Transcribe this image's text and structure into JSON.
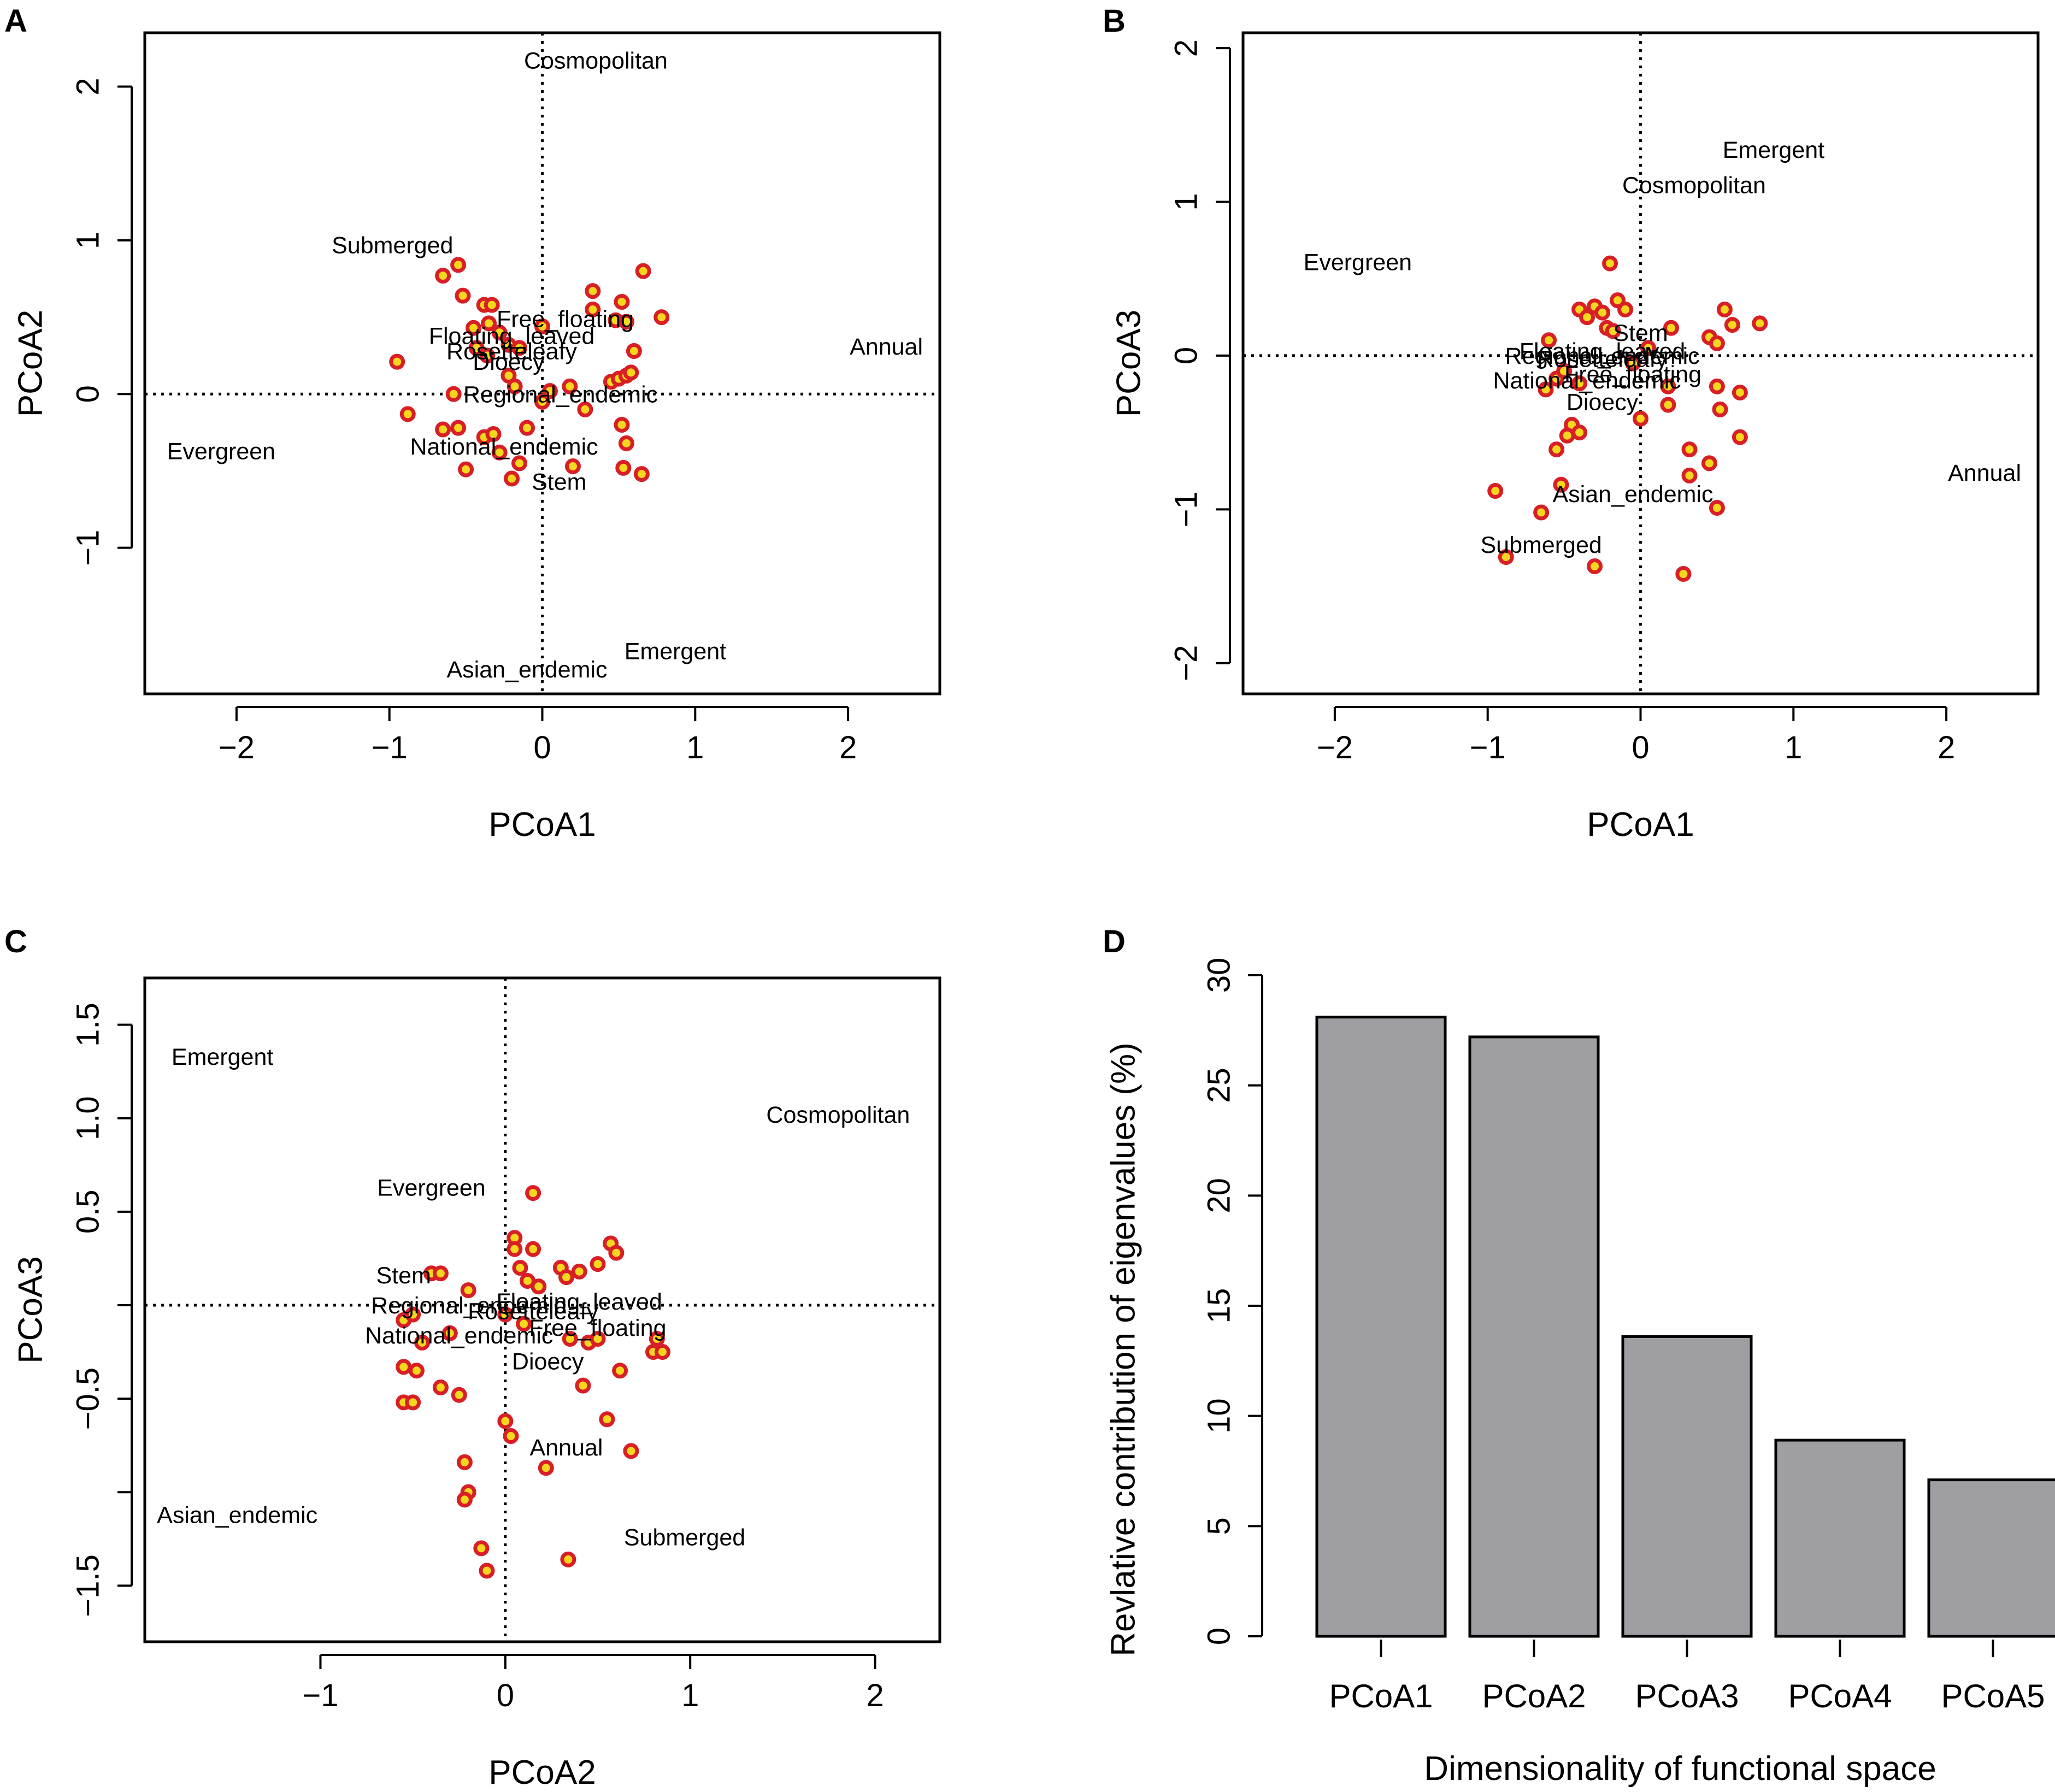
{
  "figure": {
    "panels": [
      "A",
      "B",
      "C",
      "D"
    ]
  },
  "chart_data": [
    {
      "panel": "A",
      "type": "scatter",
      "title": "",
      "xlabel": "PCoA1",
      "ylabel": "PCoA2",
      "xlim": [
        -2.6,
        2.6
      ],
      "ylim": [
        -1.95,
        2.35
      ],
      "xticks": [
        -2,
        -1,
        0,
        1,
        2
      ],
      "yticks": [
        -1,
        0,
        1,
        2
      ],
      "reference_lines": {
        "x": 0,
        "y": 0
      },
      "point_color": "#f5d71e",
      "point_edge": "#d81f26",
      "points": [
        [
          -0.65,
          0.77
        ],
        [
          -0.55,
          0.84
        ],
        [
          -0.52,
          0.64
        ],
        [
          -0.38,
          0.58
        ],
        [
          -0.33,
          0.58
        ],
        [
          -0.45,
          0.43
        ],
        [
          -0.35,
          0.46
        ],
        [
          -0.28,
          0.4
        ],
        [
          -0.43,
          0.3
        ],
        [
          -0.36,
          0.25
        ],
        [
          -0.22,
          0.32
        ],
        [
          -0.15,
          0.3
        ],
        [
          0.0,
          0.44
        ],
        [
          0.33,
          0.67
        ],
        [
          0.33,
          0.55
        ],
        [
          0.52,
          0.6
        ],
        [
          0.48,
          0.48
        ],
        [
          0.55,
          0.47
        ],
        [
          0.66,
          0.8
        ],
        [
          0.78,
          0.5
        ],
        [
          0.6,
          0.28
        ],
        [
          -0.95,
          0.21
        ],
        [
          -0.88,
          -0.13
        ],
        [
          -0.58,
          0.0
        ],
        [
          -0.55,
          -0.22
        ],
        [
          -0.65,
          -0.23
        ],
        [
          -0.5,
          -0.49
        ],
        [
          -0.38,
          -0.28
        ],
        [
          -0.32,
          -0.26
        ],
        [
          -0.28,
          -0.38
        ],
        [
          -0.22,
          0.12
        ],
        [
          -0.2,
          -0.55
        ],
        [
          -0.15,
          -0.45
        ],
        [
          -0.1,
          -0.22
        ],
        [
          -0.18,
          0.05
        ],
        [
          0.18,
          0.05
        ],
        [
          0.2,
          -0.47
        ],
        [
          0.28,
          -0.1
        ],
        [
          0.45,
          0.08
        ],
        [
          0.5,
          0.1
        ],
        [
          0.55,
          0.12
        ],
        [
          0.58,
          0.14
        ],
        [
          0.52,
          -0.2
        ],
        [
          0.55,
          -0.32
        ],
        [
          0.53,
          -0.48
        ],
        [
          0.65,
          -0.52
        ],
        [
          0.0,
          -0.05
        ],
        [
          0.05,
          0.02
        ]
      ],
      "labels": [
        {
          "text": "Cosmopolitan",
          "x": 0.35,
          "y": 2.17
        },
        {
          "text": "Submerged",
          "x": -0.98,
          "y": 0.97
        },
        {
          "text": "Free_floating",
          "x": 0.15,
          "y": 0.49
        },
        {
          "text": "Floating_leaved",
          "x": -0.2,
          "y": 0.38
        },
        {
          "text": "Rosetteleafy",
          "x": -0.2,
          "y": 0.28
        },
        {
          "text": "Dioecy",
          "x": -0.22,
          "y": 0.21
        },
        {
          "text": "Annual",
          "x": 2.25,
          "y": 0.31
        },
        {
          "text": "Regional_endemic",
          "x": 0.12,
          "y": 0.0
        },
        {
          "text": "Evergreen",
          "x": -2.1,
          "y": -0.37
        },
        {
          "text": "National_endemic",
          "x": -0.25,
          "y": -0.34
        },
        {
          "text": "Stem",
          "x": 0.11,
          "y": -0.57
        },
        {
          "text": "Emergent",
          "x": 0.87,
          "y": -1.67
        },
        {
          "text": "Asian_endemic",
          "x": -0.1,
          "y": -1.79
        }
      ]
    },
    {
      "panel": "B",
      "type": "scatter",
      "title": "",
      "xlabel": "PCoA1",
      "ylabel": "PCoA3",
      "xlim": [
        -2.6,
        2.6
      ],
      "ylim": [
        -2.2,
        2.1
      ],
      "xticks": [
        -2,
        -1,
        0,
        1,
        2
      ],
      "yticks": [
        -2,
        -1,
        0,
        1,
        2
      ],
      "reference_lines": {
        "x": 0,
        "y": 0
      },
      "point_color": "#f5d71e",
      "point_edge": "#d81f26",
      "points": [
        [
          -0.2,
          0.6
        ],
        [
          -0.4,
          0.3
        ],
        [
          -0.35,
          0.25
        ],
        [
          -0.3,
          0.32
        ],
        [
          -0.25,
          0.28
        ],
        [
          -0.15,
          0.36
        ],
        [
          -0.1,
          0.3
        ],
        [
          -0.22,
          0.18
        ],
        [
          -0.18,
          0.16
        ],
        [
          0.2,
          0.18
        ],
        [
          0.45,
          0.12
        ],
        [
          0.5,
          0.08
        ],
        [
          0.55,
          0.3
        ],
        [
          0.6,
          0.2
        ],
        [
          0.78,
          0.21
        ],
        [
          -0.6,
          0.1
        ],
        [
          -0.55,
          -0.15
        ],
        [
          -0.62,
          -0.22
        ],
        [
          -0.5,
          -0.1
        ],
        [
          -0.4,
          -0.18
        ],
        [
          -0.45,
          -0.45
        ],
        [
          -0.48,
          -0.52
        ],
        [
          -0.4,
          -0.5
        ],
        [
          -0.55,
          -0.61
        ],
        [
          0.0,
          -0.41
        ],
        [
          0.18,
          -0.32
        ],
        [
          0.18,
          -0.2
        ],
        [
          0.5,
          -0.2
        ],
        [
          0.52,
          -0.35
        ],
        [
          0.65,
          -0.24
        ],
        [
          0.65,
          -0.53
        ],
        [
          0.32,
          -0.61
        ],
        [
          0.45,
          -0.7
        ],
        [
          0.32,
          -0.78
        ],
        [
          0.5,
          -0.99
        ],
        [
          -0.95,
          -0.88
        ],
        [
          -0.52,
          -0.84
        ],
        [
          -0.65,
          -1.02
        ],
        [
          -0.88,
          -1.31
        ],
        [
          -0.3,
          -1.37
        ],
        [
          0.28,
          -1.42
        ],
        [
          -0.05,
          -0.05
        ],
        [
          0.05,
          0.05
        ]
      ],
      "labels": [
        {
          "text": "Emergent",
          "x": 0.87,
          "y": 1.34
        },
        {
          "text": "Cosmopolitan",
          "x": 0.35,
          "y": 1.11
        },
        {
          "text": "Evergreen",
          "x": -1.85,
          "y": 0.61
        },
        {
          "text": "Stem",
          "x": 0.0,
          "y": 0.15
        },
        {
          "text": "Floating_leaved",
          "x": -0.25,
          "y": 0.03
        },
        {
          "text": "Regional_endemic",
          "x": -0.25,
          "y": 0.0
        },
        {
          "text": "Rosetteleafy",
          "x": -0.25,
          "y": -0.02
        },
        {
          "text": "Free_floating",
          "x": -0.05,
          "y": -0.12
        },
        {
          "text": "National_endemic",
          "x": -0.35,
          "y": -0.16
        },
        {
          "text": "Dioecy",
          "x": -0.25,
          "y": -0.3
        },
        {
          "text": "Annual",
          "x": 2.25,
          "y": -0.76
        },
        {
          "text": "Asian_endemic",
          "x": -0.05,
          "y": -0.9
        },
        {
          "text": "Submerged",
          "x": -0.65,
          "y": -1.23
        }
      ]
    },
    {
      "panel": "C",
      "type": "scatter",
      "title": "",
      "xlabel": "PCoA2",
      "ylabel": "PCoA3",
      "xlim": [
        -1.95,
        2.35
      ],
      "ylim": [
        -1.8,
        1.75
      ],
      "xticks": [
        -1,
        0,
        1,
        2
      ],
      "yticks": [
        -1.5,
        -1.0,
        -0.5,
        0.0,
        0.5,
        1.0,
        1.5
      ],
      "ytick_labels": [
        "−1.5",
        "",
        "−0.5",
        "",
        "0.5",
        "1.0",
        "1.5"
      ],
      "reference_lines": {
        "x": 0,
        "y": 0
      },
      "point_color": "#f5d71e",
      "point_edge": "#d81f26",
      "points": [
        [
          0.15,
          0.6
        ],
        [
          0.05,
          0.36
        ],
        [
          0.05,
          0.3
        ],
        [
          0.15,
          0.3
        ],
        [
          0.57,
          0.33
        ],
        [
          0.6,
          0.28
        ],
        [
          0.5,
          0.22
        ],
        [
          0.3,
          0.2
        ],
        [
          0.4,
          0.18
        ],
        [
          0.33,
          0.15
        ],
        [
          0.08,
          0.2
        ],
        [
          0.12,
          0.13
        ],
        [
          0.18,
          0.1
        ],
        [
          -0.4,
          0.17
        ],
        [
          -0.35,
          0.17
        ],
        [
          -0.2,
          0.08
        ],
        [
          -0.55,
          -0.08
        ],
        [
          -0.5,
          -0.05
        ],
        [
          -0.45,
          -0.2
        ],
        [
          -0.3,
          -0.15
        ],
        [
          -0.55,
          -0.33
        ],
        [
          -0.48,
          -0.35
        ],
        [
          -0.55,
          -0.52
        ],
        [
          -0.5,
          -0.52
        ],
        [
          -0.35,
          -0.44
        ],
        [
          -0.25,
          -0.48
        ],
        [
          0.35,
          -0.18
        ],
        [
          0.45,
          -0.2
        ],
        [
          0.5,
          -0.18
        ],
        [
          0.8,
          -0.25
        ],
        [
          0.85,
          -0.25
        ],
        [
          0.82,
          -0.18
        ],
        [
          0.42,
          -0.43
        ],
        [
          0.62,
          -0.35
        ],
        [
          0.55,
          -0.61
        ],
        [
          0.68,
          -0.78
        ],
        [
          0.0,
          -0.62
        ],
        [
          0.03,
          -0.7
        ],
        [
          0.22,
          -0.87
        ],
        [
          -0.22,
          -0.84
        ],
        [
          -0.2,
          -1.0
        ],
        [
          -0.22,
          -1.04
        ],
        [
          -0.13,
          -1.3
        ],
        [
          -0.1,
          -1.42
        ],
        [
          0.34,
          -1.36
        ],
        [
          0.0,
          -0.05
        ],
        [
          0.1,
          -0.1
        ]
      ],
      "labels": [
        {
          "text": "Emergent",
          "x": -1.53,
          "y": 1.33
        },
        {
          "text": "Cosmopolitan",
          "x": 1.8,
          "y": 1.02
        },
        {
          "text": "Evergreen",
          "x": -0.4,
          "y": 0.63
        },
        {
          "text": "Stem",
          "x": -0.55,
          "y": 0.16
        },
        {
          "text": "Regional_endemic",
          "x": -0.2,
          "y": 0.0
        },
        {
          "text": "Floating_leaved",
          "x": 0.4,
          "y": 0.02
        },
        {
          "text": "Rosetteleafy",
          "x": 0.15,
          "y": -0.03
        },
        {
          "text": "Free_floating",
          "x": 0.5,
          "y": -0.12
        },
        {
          "text": "National_endemic",
          "x": -0.25,
          "y": -0.16
        },
        {
          "text": "Dioecy",
          "x": 0.23,
          "y": -0.3
        },
        {
          "text": "Annual",
          "x": 0.33,
          "y": -0.76
        },
        {
          "text": "Asian_endemic",
          "x": -1.45,
          "y": -1.12
        },
        {
          "text": "Submerged",
          "x": 0.97,
          "y": -1.24
        }
      ]
    },
    {
      "panel": "D",
      "type": "bar",
      "title": "",
      "xlabel": "Dimensionality of functional space",
      "ylabel": "Revlative contribution of eigenvalues (%)",
      "categories": [
        "PCoA1",
        "PCoA2",
        "PCoA3",
        "PCoA4",
        "PCoA5"
      ],
      "values": [
        28.1,
        27.2,
        13.6,
        8.9,
        7.1
      ],
      "ylim": [
        0,
        30
      ],
      "yticks": [
        0,
        5,
        10,
        15,
        20,
        25,
        30
      ],
      "bar_color": "#9e9ea3"
    }
  ]
}
